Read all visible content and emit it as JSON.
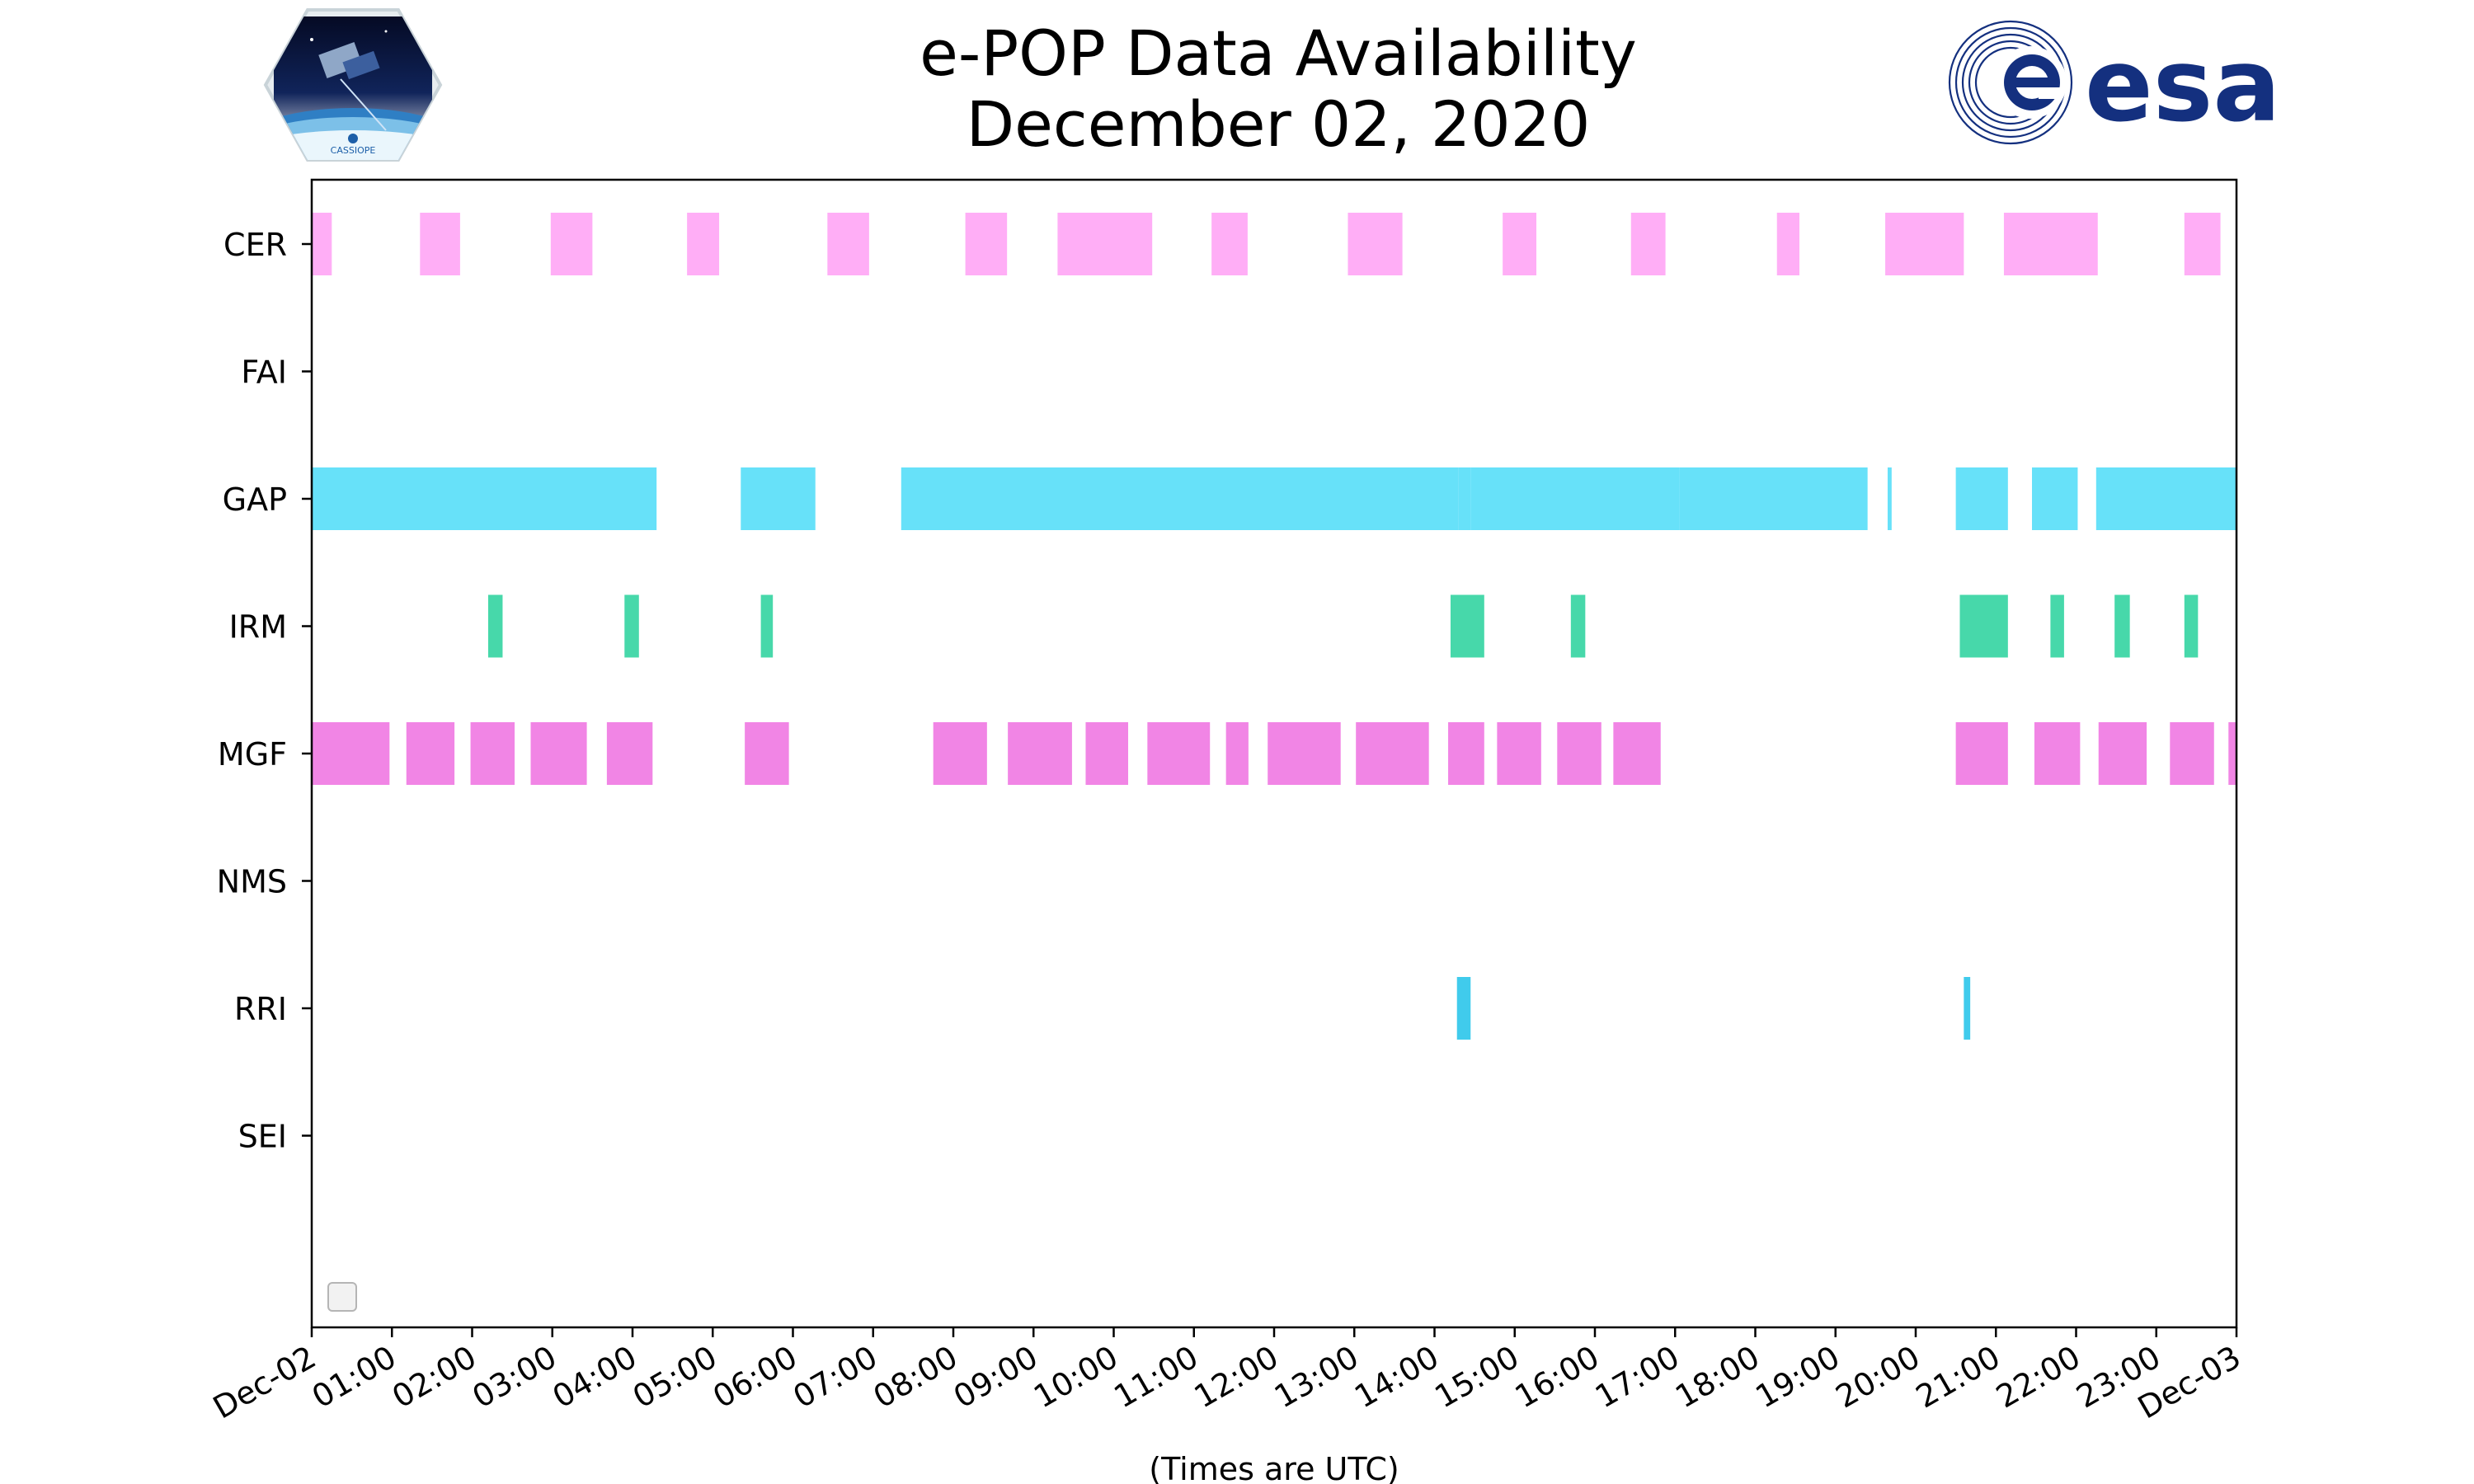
{
  "header": {
    "title_line1": "e-POP Data Availability",
    "title_line2": "December 02, 2020",
    "left_logo_icon": "cassiope-satellite-logo",
    "left_logo_text": "CASSIOPE",
    "right_logo_icon": "esa-logo",
    "right_logo_text": "esa"
  },
  "chart_data": {
    "type": "timeline",
    "title": "e-POP Data Availability December 02, 2020",
    "xlabel": "(Times are UTC)",
    "ylabel": "",
    "x_unit": "hours UTC",
    "xlim": [
      0,
      24
    ],
    "x_ticks": [
      "Dec-02",
      "01:00",
      "02:00",
      "03:00",
      "04:00",
      "05:00",
      "06:00",
      "07:00",
      "08:00",
      "09:00",
      "10:00",
      "11:00",
      "12:00",
      "13:00",
      "14:00",
      "15:00",
      "16:00",
      "17:00",
      "18:00",
      "19:00",
      "20:00",
      "21:00",
      "22:00",
      "23:00",
      "Dec-03"
    ],
    "grid": false,
    "legend": "lower-left (empty)",
    "categories": [
      "CER",
      "FAI",
      "GAP",
      "IRM",
      "MGF",
      "NMS",
      "RRI",
      "SEI"
    ],
    "series": [
      {
        "category": "CER",
        "color": "#ffaaf5",
        "intervals": [
          [
            0.0,
            0.25
          ],
          [
            1.35,
            1.85
          ],
          [
            2.98,
            3.5
          ],
          [
            4.68,
            5.08
          ],
          [
            6.43,
            6.95
          ],
          [
            8.15,
            8.67
          ],
          [
            9.3,
            10.48
          ],
          [
            11.22,
            11.67
          ],
          [
            12.92,
            13.6
          ],
          [
            14.85,
            15.27
          ],
          [
            16.45,
            16.88
          ],
          [
            18.27,
            18.55
          ],
          [
            19.62,
            20.6
          ],
          [
            21.1,
            22.27
          ],
          [
            23.35,
            23.8
          ]
        ]
      },
      {
        "category": "FAI",
        "color": "#cccccc",
        "intervals": []
      },
      {
        "category": "GAP",
        "color": "#5fdff9",
        "intervals": [
          [
            0.0,
            4.3
          ],
          [
            5.35,
            6.28
          ],
          [
            7.35,
            14.3
          ],
          [
            14.3,
            14.45
          ],
          [
            14.45,
            17.05
          ],
          [
            17.05,
            19.4
          ],
          [
            19.65,
            19.7
          ],
          [
            20.5,
            21.15
          ],
          [
            21.45,
            22.02
          ],
          [
            22.25,
            24.0
          ]
        ]
      },
      {
        "category": "IRM",
        "color": "#3dd6a5",
        "intervals": [
          [
            2.2,
            2.38
          ],
          [
            3.9,
            4.08
          ],
          [
            5.6,
            5.75
          ],
          [
            14.2,
            14.62
          ],
          [
            15.7,
            15.88
          ],
          [
            20.55,
            21.15
          ],
          [
            21.68,
            21.85
          ],
          [
            22.48,
            22.67
          ],
          [
            23.35,
            23.52
          ]
        ]
      },
      {
        "category": "MGF",
        "color": "#f07ee4",
        "intervals": [
          [
            0.0,
            0.97
          ],
          [
            1.18,
            1.78
          ],
          [
            1.98,
            2.53
          ],
          [
            2.73,
            3.43
          ],
          [
            3.68,
            4.25
          ],
          [
            5.4,
            5.95
          ],
          [
            7.75,
            8.42
          ],
          [
            8.68,
            9.48
          ],
          [
            9.65,
            10.18
          ],
          [
            10.42,
            11.2
          ],
          [
            11.4,
            11.68
          ],
          [
            11.92,
            12.83
          ],
          [
            13.02,
            13.93
          ],
          [
            14.17,
            14.62
          ],
          [
            14.78,
            15.33
          ],
          [
            15.53,
            16.08
          ],
          [
            16.23,
            16.82
          ],
          [
            20.5,
            21.15
          ],
          [
            21.48,
            22.05
          ],
          [
            22.28,
            22.88
          ],
          [
            23.17,
            23.72
          ],
          [
            23.9,
            24.0
          ]
        ]
      },
      {
        "category": "NMS",
        "color": "#cccccc",
        "intervals": []
      },
      {
        "category": "RRI",
        "color": "#36c8eb",
        "intervals": [
          [
            14.28,
            14.45
          ],
          [
            20.6,
            20.68
          ]
        ]
      },
      {
        "category": "SEI",
        "color": "#cccccc",
        "intervals": []
      }
    ]
  }
}
